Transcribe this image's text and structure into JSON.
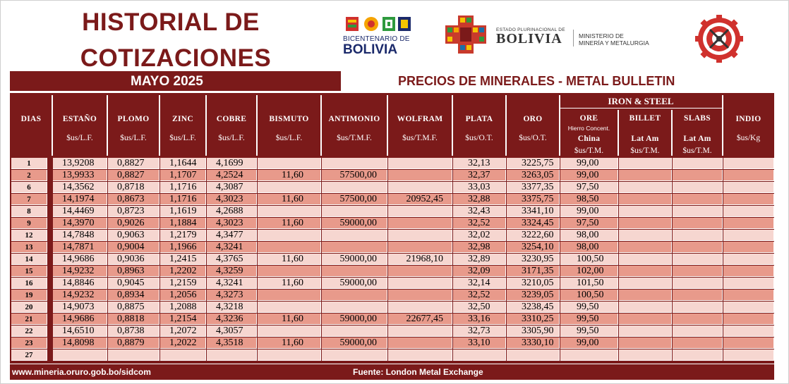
{
  "header": {
    "title_line1": "HISTORIAL DE",
    "title_line2": "COTIZACIONES",
    "month": "MAYO 2025",
    "subtitle": "PRECIOS DE MINERALES - METAL BULLETIN"
  },
  "logos": {
    "bicentenario_line1": "BICENTENARIO DE",
    "bicentenario_line2": "BOLIVIA",
    "estado_line1": "ESTADO PLURINACIONAL DE",
    "estado_line2": "BOLIVIA",
    "ministerio_line1": "MINISTERIO DE",
    "ministerio_line2": "MINERÍA Y METALURGIA"
  },
  "table": {
    "group_header": "IRON & STEEL",
    "columns": [
      {
        "name": "DIAS",
        "unit": "",
        "extra": ""
      },
      {
        "name": "ESTAÑO",
        "unit": "$us/L.F.",
        "extra": ""
      },
      {
        "name": "PLOMO",
        "unit": "$us/L.F.",
        "extra": ""
      },
      {
        "name": "ZINC",
        "unit": "$us/L.F.",
        "extra": ""
      },
      {
        "name": "COBRE",
        "unit": "$us/L.F.",
        "extra": ""
      },
      {
        "name": "BISMUTO",
        "unit": "$us/L.F.",
        "extra": ""
      },
      {
        "name": "ANTIMONIO",
        "unit": "$us/T.M.F.",
        "extra": ""
      },
      {
        "name": "WOLFRAM",
        "unit": "$us/T.M.F.",
        "extra": ""
      },
      {
        "name": "PLATA",
        "unit": "$us/O.T.",
        "extra": ""
      },
      {
        "name": "ORO",
        "unit": "$us/O.T.",
        "extra": ""
      },
      {
        "name": "ORE",
        "sub": "Hierro Concent.",
        "extra": "China",
        "unit": "$us/T.M."
      },
      {
        "name": "BILLET",
        "extra": "Lat Am",
        "unit": "$us/T.M."
      },
      {
        "name": "SLABS",
        "extra": "Lat Am",
        "unit": "$us/T.M."
      },
      {
        "name": "INDIO",
        "unit": "$us/Kg",
        "extra": ""
      }
    ],
    "rows": [
      [
        "1",
        "13,9208",
        "0,8827",
        "1,1644",
        "4,1699",
        "",
        "",
        "",
        "32,13",
        "3225,75",
        "99,00",
        "",
        "",
        ""
      ],
      [
        "2",
        "13,9933",
        "0,8827",
        "1,1707",
        "4,2524",
        "11,60",
        "57500,00",
        "",
        "32,37",
        "3263,05",
        "99,00",
        "",
        "",
        ""
      ],
      [
        "6",
        "14,3562",
        "0,8718",
        "1,1716",
        "4,3087",
        "",
        "",
        "",
        "33,03",
        "3377,35",
        "97,50",
        "",
        "",
        ""
      ],
      [
        "7",
        "14,1974",
        "0,8673",
        "1,1716",
        "4,3023",
        "11,60",
        "57500,00",
        "20952,45",
        "32,88",
        "3375,75",
        "98,50",
        "",
        "",
        ""
      ],
      [
        "8",
        "14,4469",
        "0,8723",
        "1,1619",
        "4,2688",
        "",
        "",
        "",
        "32,43",
        "3341,10",
        "99,00",
        "",
        "",
        ""
      ],
      [
        "9",
        "14,3970",
        "0,9026",
        "1,1884",
        "4,3023",
        "11,60",
        "59000,00",
        "",
        "32,52",
        "3324,45",
        "97,50",
        "",
        "",
        ""
      ],
      [
        "12",
        "14,7848",
        "0,9063",
        "1,2179",
        "4,3477",
        "",
        "",
        "",
        "32,02",
        "3222,60",
        "98,00",
        "",
        "",
        ""
      ],
      [
        "13",
        "14,7871",
        "0,9004",
        "1,1966",
        "4,3241",
        "",
        "",
        "",
        "32,98",
        "3254,10",
        "98,00",
        "",
        "",
        ""
      ],
      [
        "14",
        "14,9686",
        "0,9036",
        "1,2415",
        "4,3765",
        "11,60",
        "59000,00",
        "21968,10",
        "32,89",
        "3230,95",
        "100,50",
        "",
        "",
        ""
      ],
      [
        "15",
        "14,9232",
        "0,8963",
        "1,2202",
        "4,3259",
        "",
        "",
        "",
        "32,09",
        "3171,35",
        "102,00",
        "",
        "",
        ""
      ],
      [
        "16",
        "14,8846",
        "0,9045",
        "1,2159",
        "4,3241",
        "11,60",
        "59000,00",
        "",
        "32,14",
        "3210,05",
        "101,50",
        "",
        "",
        ""
      ],
      [
        "19",
        "14,9232",
        "0,8934",
        "1,2056",
        "4,3273",
        "",
        "",
        "",
        "32,52",
        "3239,05",
        "100,50",
        "",
        "",
        ""
      ],
      [
        "20",
        "14,9073",
        "0,8875",
        "1,2088",
        "4,3218",
        "",
        "",
        "",
        "32,50",
        "3238,45",
        "99,50",
        "",
        "",
        ""
      ],
      [
        "21",
        "14,9686",
        "0,8818",
        "1,2154",
        "4,3236",
        "11,60",
        "59000,00",
        "22677,45",
        "33,16",
        "3310,25",
        "99,50",
        "",
        "",
        ""
      ],
      [
        "22",
        "14,6510",
        "0,8738",
        "1,2072",
        "4,3057",
        "",
        "",
        "",
        "32,73",
        "3305,90",
        "99,50",
        "",
        "",
        ""
      ],
      [
        "23",
        "14,8098",
        "0,8879",
        "1,2022",
        "4,3518",
        "11,60",
        "59000,00",
        "",
        "33,10",
        "3330,10",
        "99,00",
        "",
        "",
        ""
      ],
      [
        "27",
        "",
        "",
        "",
        "",
        "",
        "",
        "",
        "",
        "",
        "",
        "",
        "",
        ""
      ]
    ]
  },
  "footer": {
    "url": "www.mineria.oruro.gob.bo/sidcom",
    "source": "Fuente: London Metal Exchange"
  },
  "colors": {
    "maroon": "#7b1a1a",
    "row_light": "#f6d6d0",
    "row_dark": "#e89a8b"
  }
}
